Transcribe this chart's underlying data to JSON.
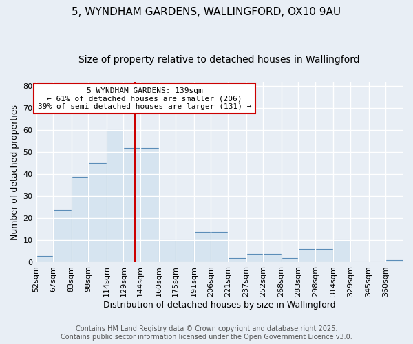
{
  "title_line1": "5, WYNDHAM GARDENS, WALLINGFORD, OX10 9AU",
  "title_line2": "Size of property relative to detached houses in Wallingford",
  "xlabel": "Distribution of detached houses by size in Wallingford",
  "ylabel": "Number of detached properties",
  "bar_labels": [
    "52sqm",
    "67sqm",
    "83sqm",
    "98sqm",
    "114sqm",
    "129sqm",
    "144sqm",
    "160sqm",
    "175sqm",
    "191sqm",
    "206sqm",
    "221sqm",
    "237sqm",
    "252sqm",
    "268sqm",
    "283sqm",
    "298sqm",
    "314sqm",
    "329sqm",
    "345sqm",
    "360sqm"
  ],
  "bar_values": [
    3,
    24,
    39,
    45,
    60,
    52,
    52,
    10,
    10,
    14,
    14,
    2,
    4,
    4,
    2,
    6,
    6,
    10,
    0,
    0,
    1
  ],
  "bar_color": "#d6e4f0",
  "bar_edge_color": "#5b8db8",
  "background_color": "#e8eef5",
  "grid_color": "#ffffff",
  "property_label": "5 WYNDHAM GARDENS: 139sqm",
  "pct_smaller": 61,
  "num_smaller": 206,
  "pct_larger_semi": 39,
  "num_larger_semi": 131,
  "red_line_x": 139,
  "bin_edges": [
    52,
    67,
    83,
    98,
    114,
    129,
    144,
    160,
    175,
    191,
    206,
    221,
    237,
    252,
    268,
    283,
    298,
    314,
    329,
    345,
    360,
    375
  ],
  "ylim": [
    0,
    82
  ],
  "yticks": [
    0,
    10,
    20,
    30,
    40,
    50,
    60,
    70,
    80
  ],
  "annotation_box_color": "#ffffff",
  "annotation_box_edge": "#cc0000",
  "red_line_color": "#cc0000",
  "footer_line1": "Contains HM Land Registry data © Crown copyright and database right 2025.",
  "footer_line2": "Contains public sector information licensed under the Open Government Licence v3.0.",
  "title_fontsize": 11,
  "subtitle_fontsize": 10,
  "axis_label_fontsize": 9,
  "tick_fontsize": 8,
  "annotation_fontsize": 8,
  "footer_fontsize": 7
}
